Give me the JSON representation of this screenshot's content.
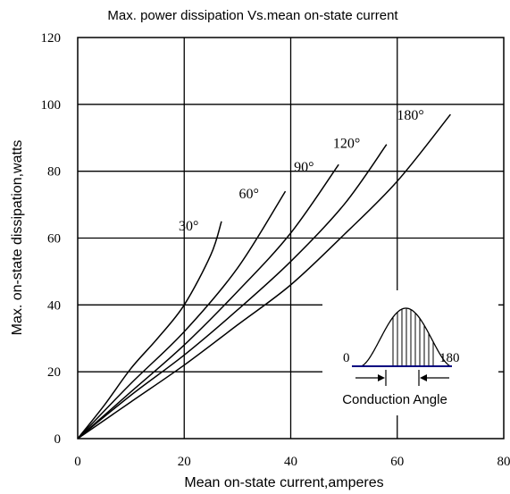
{
  "chart_data": {
    "type": "line",
    "title": "Max. power dissipation Vs.mean on-state current",
    "xlabel": "Mean on-state current,amperes",
    "ylabel": "Max. on-state dissipation,watts",
    "xlim": [
      0,
      80
    ],
    "ylim": [
      0,
      120
    ],
    "xticks": [
      "0",
      "20",
      "40",
      "60",
      "80"
    ],
    "yticks": [
      "0",
      "20",
      "40",
      "60",
      "80",
      "100",
      "120"
    ],
    "grid": true,
    "series": [
      {
        "name": "30°",
        "x": [
          0,
          5,
          10,
          15,
          20,
          25,
          27
        ],
        "y": [
          0,
          10,
          21,
          30,
          40,
          55,
          65
        ]
      },
      {
        "name": "60°",
        "x": [
          0,
          10,
          20,
          30,
          39
        ],
        "y": [
          0,
          16.5,
          32,
          51,
          74
        ]
      },
      {
        "name": "90°",
        "x": [
          0,
          10,
          20,
          30,
          40,
          49
        ],
        "y": [
          0,
          14,
          28,
          44,
          61.5,
          82
        ]
      },
      {
        "name": "120°",
        "x": [
          0,
          10,
          20,
          30,
          40,
          50,
          58
        ],
        "y": [
          0,
          13,
          25,
          38.5,
          53,
          70,
          88
        ]
      },
      {
        "name": "180°",
        "x": [
          0,
          10,
          20,
          30,
          40,
          50,
          60,
          70
        ],
        "y": [
          0,
          11,
          22,
          34,
          46,
          61,
          77,
          97
        ]
      }
    ],
    "inset": {
      "start_label": "0",
      "end_label": "180",
      "caption": "Conduction Angle"
    }
  }
}
